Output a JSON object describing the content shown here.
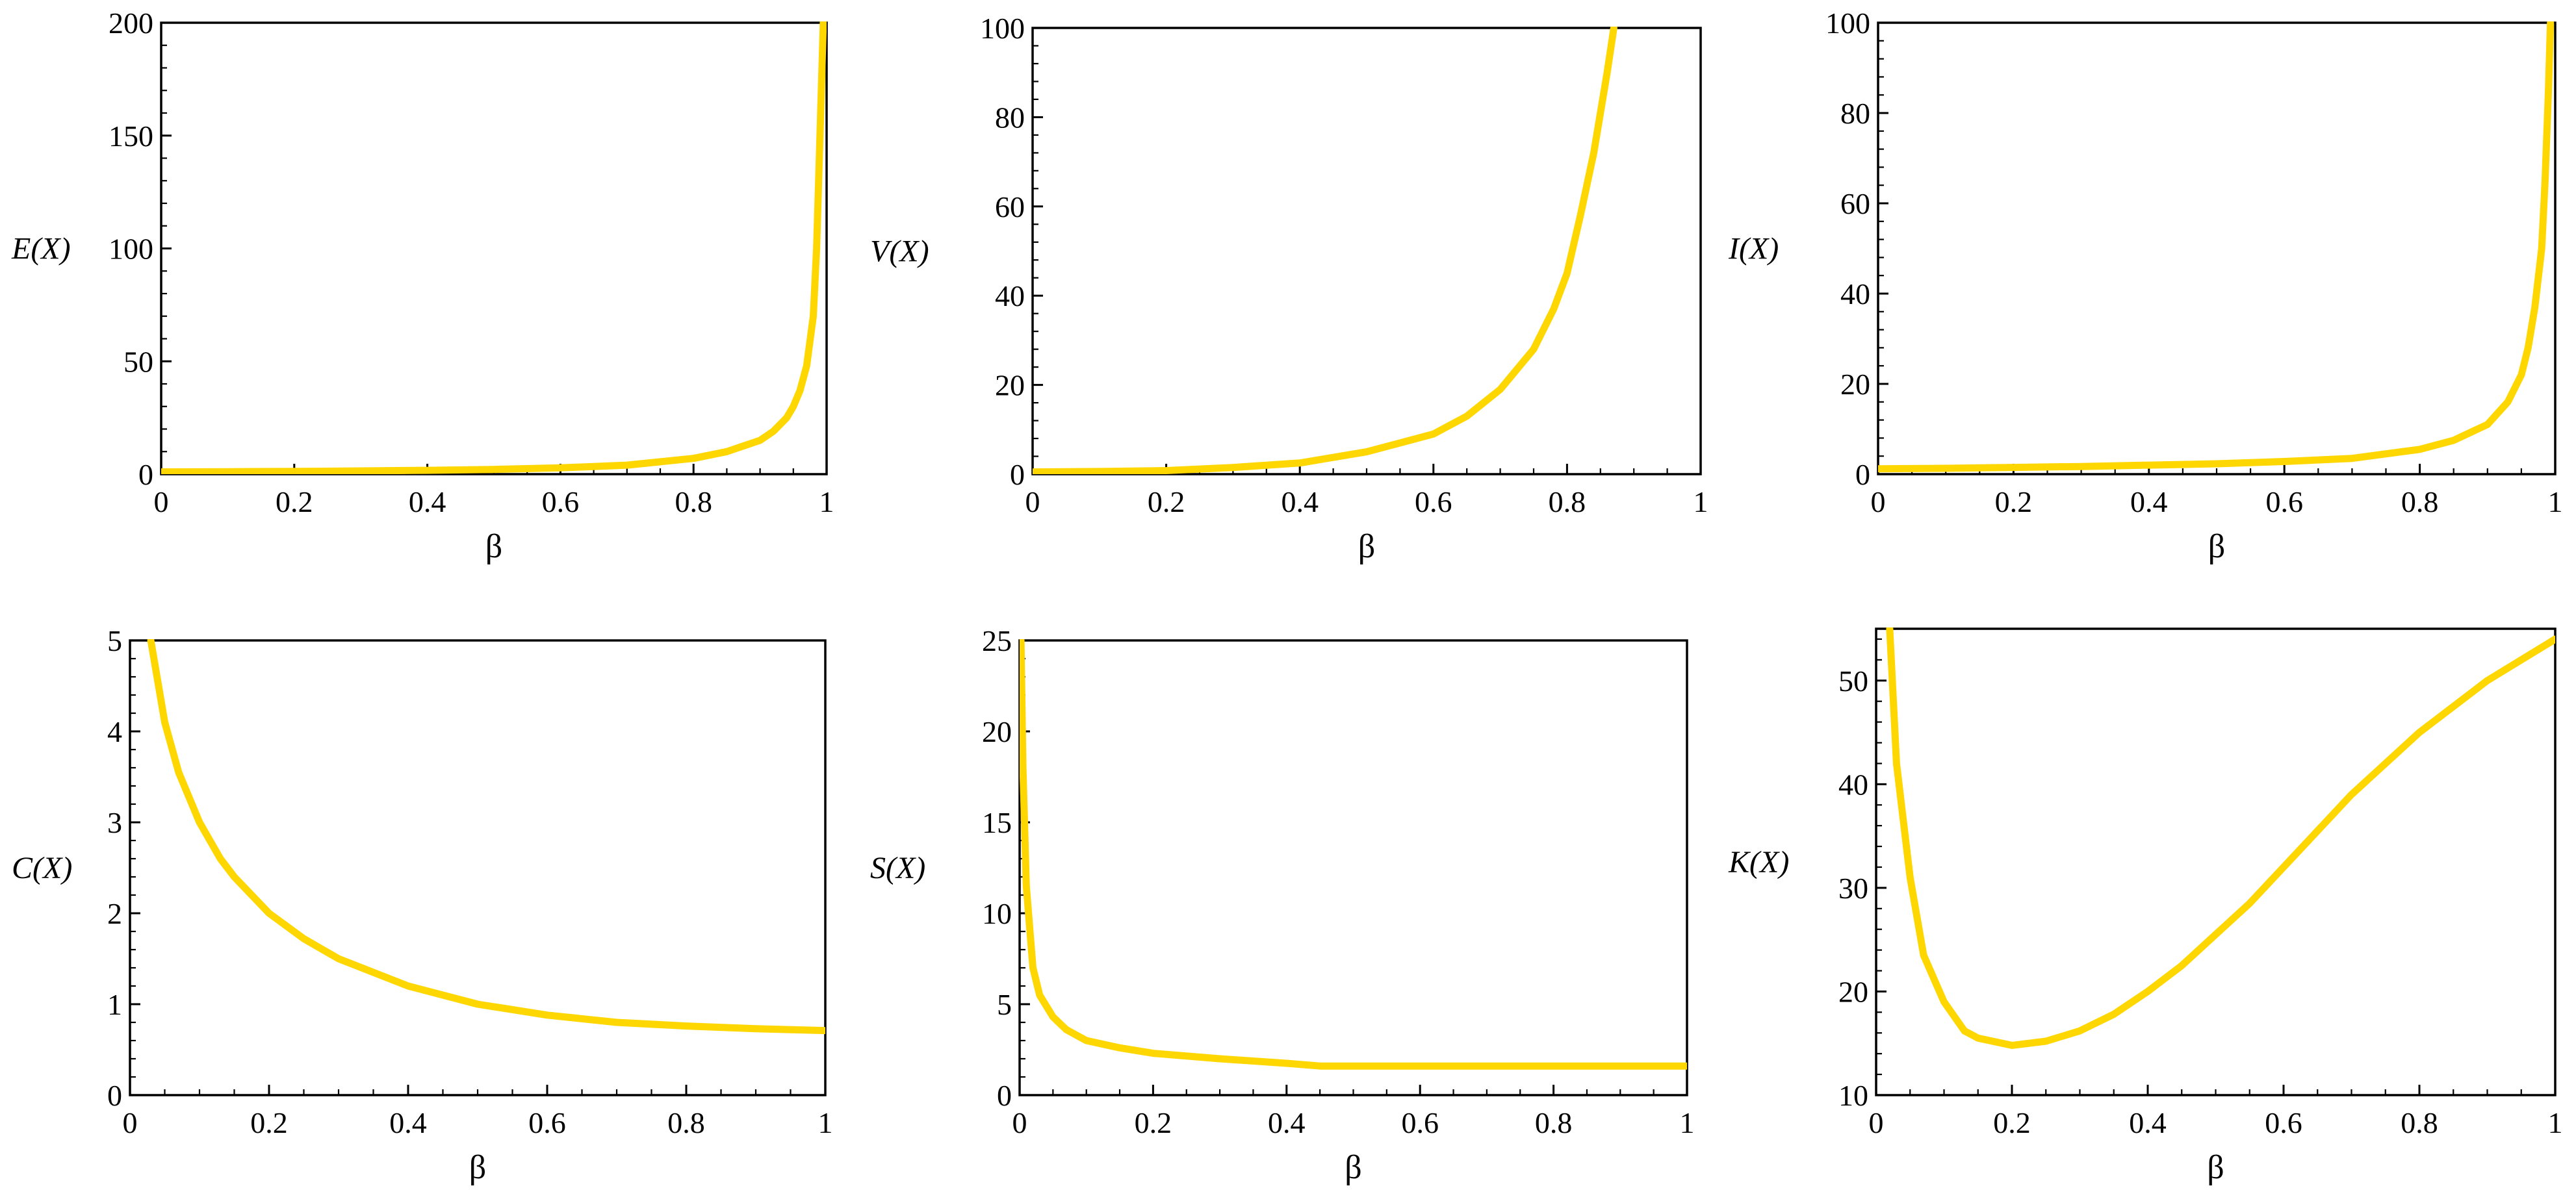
{
  "colors": {
    "curve": "#FFD700",
    "axes": "#000000",
    "background": "#ffffff"
  },
  "chart_data": [
    {
      "type": "line",
      "panel_id": "E",
      "title": "",
      "xlabel": "β",
      "ylabel": "E(X)",
      "xlim": [
        0,
        1
      ],
      "ylim": [
        0,
        200
      ],
      "xticks": [
        0,
        0.2,
        0.4,
        0.6,
        0.8,
        1
      ],
      "xtick_labels": [
        "0",
        "0.2",
        "0.4",
        "0.6",
        "0.8",
        "1"
      ],
      "yticks": [
        0,
        50,
        100,
        150,
        200
      ],
      "ytick_labels": [
        "0",
        "50",
        "100",
        "150",
        "200"
      ],
      "grid": false,
      "series": [
        {
          "x": [
            0,
            0.1,
            0.2,
            0.3,
            0.4,
            0.5,
            0.6,
            0.7,
            0.8,
            0.85,
            0.9,
            0.92,
            0.94,
            0.95,
            0.96,
            0.97,
            0.98,
            0.985,
            0.99,
            0.995
          ],
          "y": [
            1,
            1.1,
            1.25,
            1.45,
            1.7,
            2.1,
            2.8,
            4,
            7,
            10,
            15,
            19,
            25,
            30,
            37,
            48,
            70,
            100,
            150,
            200
          ]
        }
      ]
    },
    {
      "type": "line",
      "panel_id": "V",
      "title": "",
      "xlabel": "β",
      "ylabel": "V(X)",
      "xlim": [
        0,
        1
      ],
      "ylim": [
        0,
        100
      ],
      "xticks": [
        0,
        0.2,
        0.4,
        0.6,
        0.8,
        1
      ],
      "xtick_labels": [
        "0",
        "0.2",
        "0.4",
        "0.6",
        "0.8",
        "1"
      ],
      "yticks": [
        0,
        20,
        40,
        60,
        80,
        100
      ],
      "ytick_labels": [
        "0",
        "20",
        "40",
        "60",
        "80",
        "100"
      ],
      "grid": false,
      "series": [
        {
          "x": [
            0,
            0.1,
            0.2,
            0.3,
            0.4,
            0.5,
            0.6,
            0.65,
            0.7,
            0.75,
            0.78,
            0.8,
            0.82,
            0.84,
            0.86,
            0.87
          ],
          "y": [
            0.5,
            0.6,
            0.8,
            1.5,
            2.5,
            5,
            9,
            13,
            19,
            28,
            37,
            45,
            58,
            72,
            90,
            100
          ]
        }
      ]
    },
    {
      "type": "line",
      "panel_id": "I",
      "title": "",
      "xlabel": "β",
      "ylabel": "I(X)",
      "xlim": [
        0,
        1
      ],
      "ylim": [
        0,
        100
      ],
      "xticks": [
        0,
        0.2,
        0.4,
        0.6,
        0.8,
        1
      ],
      "xtick_labels": [
        "0",
        "0.2",
        "0.4",
        "0.6",
        "0.8",
        "1"
      ],
      "yticks": [
        0,
        20,
        40,
        60,
        80,
        100
      ],
      "ytick_labels": [
        "0",
        "20",
        "40",
        "60",
        "80",
        "100"
      ],
      "grid": false,
      "series": [
        {
          "x": [
            0,
            0.1,
            0.2,
            0.3,
            0.4,
            0.5,
            0.6,
            0.7,
            0.8,
            0.85,
            0.9,
            0.93,
            0.95,
            0.96,
            0.97,
            0.98,
            0.985,
            0.99,
            0.993
          ],
          "y": [
            1.2,
            1.3,
            1.5,
            1.7,
            2,
            2.3,
            2.8,
            3.5,
            5.5,
            7.5,
            11,
            16,
            22,
            28,
            37,
            50,
            65,
            85,
            100
          ]
        }
      ]
    },
    {
      "type": "line",
      "panel_id": "C",
      "title": "",
      "xlabel": "β",
      "ylabel": "C(X)",
      "xlim": [
        0,
        1
      ],
      "ylim": [
        0,
        5
      ],
      "xticks": [
        0,
        0.2,
        0.4,
        0.6,
        0.8,
        1
      ],
      "xtick_labels": [
        "0",
        "0.2",
        "0.4",
        "0.6",
        "0.8",
        "1"
      ],
      "yticks": [
        0,
        1,
        2,
        3,
        4,
        5
      ],
      "ytick_labels": [
        "0",
        "1",
        "2",
        "3",
        "4",
        "5"
      ],
      "grid": false,
      "series": [
        {
          "x": [
            0.03,
            0.05,
            0.07,
            0.1,
            0.13,
            0.15,
            0.2,
            0.25,
            0.3,
            0.4,
            0.5,
            0.6,
            0.7,
            0.8,
            0.9,
            1.0
          ],
          "y": [
            5,
            4.1,
            3.55,
            3.0,
            2.6,
            2.4,
            2.0,
            1.72,
            1.5,
            1.2,
            1.0,
            0.88,
            0.8,
            0.76,
            0.73,
            0.71
          ]
        }
      ]
    },
    {
      "type": "line",
      "panel_id": "S",
      "title": "",
      "xlabel": "β",
      "ylabel": "S(X)",
      "xlim": [
        0,
        1
      ],
      "ylim": [
        0,
        25
      ],
      "xticks": [
        0,
        0.2,
        0.4,
        0.6,
        0.8,
        1
      ],
      "xtick_labels": [
        "0",
        "0.2",
        "0.4",
        "0.6",
        "0.8",
        "1"
      ],
      "yticks": [
        0,
        5,
        10,
        15,
        20,
        25
      ],
      "ytick_labels": [
        "0",
        "5",
        "10",
        "15",
        "20",
        "25"
      ],
      "grid": false,
      "series": [
        {
          "x": [
            0.002,
            0.005,
            0.01,
            0.02,
            0.03,
            0.05,
            0.07,
            0.1,
            0.15,
            0.2,
            0.3,
            0.4,
            0.45,
            0.5,
            0.6,
            0.8,
            1.0
          ],
          "y": [
            25,
            18,
            11.5,
            7,
            5.5,
            4.3,
            3.6,
            3.0,
            2.6,
            2.3,
            2.0,
            1.75,
            1.6,
            1.6,
            1.6,
            1.6,
            1.6
          ]
        }
      ]
    },
    {
      "type": "line",
      "panel_id": "K",
      "title": "",
      "xlabel": "β",
      "ylabel": "K(X)",
      "xlim": [
        0,
        1
      ],
      "ylim": [
        10,
        55
      ],
      "xticks": [
        0,
        0.2,
        0.4,
        0.6,
        0.8,
        1
      ],
      "xtick_labels": [
        "0",
        "0.2",
        "0.4",
        "0.6",
        "0.8",
        "1"
      ],
      "yticks": [
        10,
        20,
        30,
        40,
        50
      ],
      "ytick_labels": [
        "10",
        "20",
        "30",
        "40",
        "50"
      ],
      "grid": false,
      "series": [
        {
          "x": [
            0.02,
            0.03,
            0.05,
            0.07,
            0.1,
            0.13,
            0.15,
            0.2,
            0.25,
            0.3,
            0.35,
            0.4,
            0.45,
            0.5,
            0.55,
            0.6,
            0.7,
            0.8,
            0.9,
            1.0
          ],
          "y": [
            55,
            42,
            31,
            23.5,
            19,
            16.2,
            15.5,
            14.8,
            15.2,
            16.2,
            17.8,
            20,
            22.5,
            25.5,
            28.5,
            32,
            39,
            45,
            50,
            54
          ]
        }
      ]
    }
  ]
}
